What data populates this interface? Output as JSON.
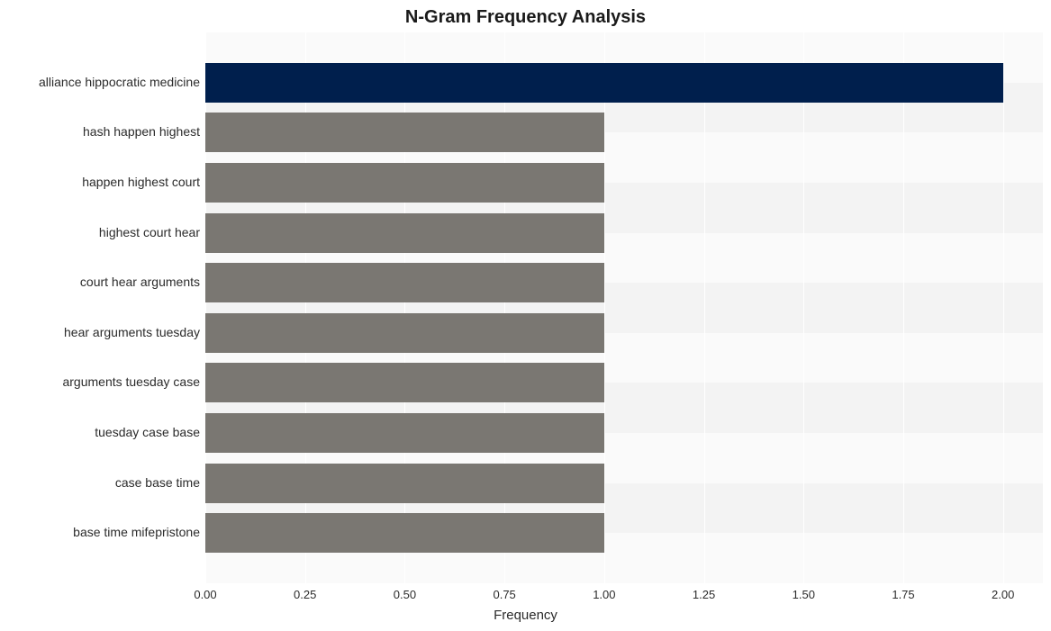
{
  "chart": {
    "type": "bar-horizontal",
    "title": "N-Gram Frequency Analysis",
    "title_fontsize": 20,
    "title_fontweight": "bold",
    "title_color": "#1a1a1a",
    "background_color": "#ffffff",
    "plot_background": "#f7f7f7",
    "grid_color": "#ffffff",
    "stripe_light": "#fafafa",
    "stripe_dark": "#f3f3f3",
    "x_axis": {
      "label": "Frequency",
      "label_fontsize": 15,
      "tick_fontsize": 13,
      "min": 0.0,
      "max": 2.1,
      "tick_step": 0.25,
      "ticks": [
        "0.00",
        "0.25",
        "0.50",
        "0.75",
        "1.00",
        "1.25",
        "1.50",
        "1.75",
        "2.00"
      ],
      "tick_values": [
        0.0,
        0.25,
        0.5,
        0.75,
        1.0,
        1.25,
        1.5,
        1.75,
        2.0
      ]
    },
    "y_axis": {
      "label_fontsize": 15,
      "tick_fontsize": 14
    },
    "bar_height_ratio": 0.79,
    "categories": [
      "alliance hippocratic medicine",
      "hash happen highest",
      "happen highest court",
      "highest court hear",
      "court hear arguments",
      "hear arguments tuesday",
      "arguments tuesday case",
      "tuesday case base",
      "case base time",
      "base time mifepristone"
    ],
    "values": [
      2.0,
      1.0,
      1.0,
      1.0,
      1.0,
      1.0,
      1.0,
      1.0,
      1.0,
      1.0
    ],
    "bar_colors": [
      "#001f4d",
      "#7a7772",
      "#7a7772",
      "#7a7772",
      "#7a7772",
      "#7a7772",
      "#7a7772",
      "#7a7772",
      "#7a7772",
      "#7a7772"
    ]
  }
}
